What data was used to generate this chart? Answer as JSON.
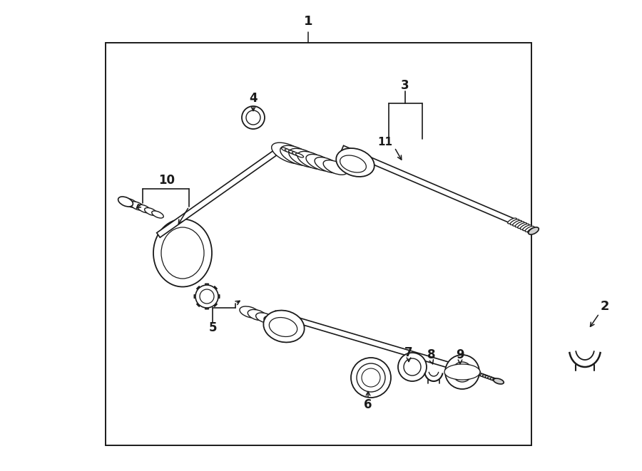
{
  "bg_color": "#ffffff",
  "line_color": "#1a1a1a",
  "fig_w": 9.0,
  "fig_h": 6.61,
  "dpi": 100
}
